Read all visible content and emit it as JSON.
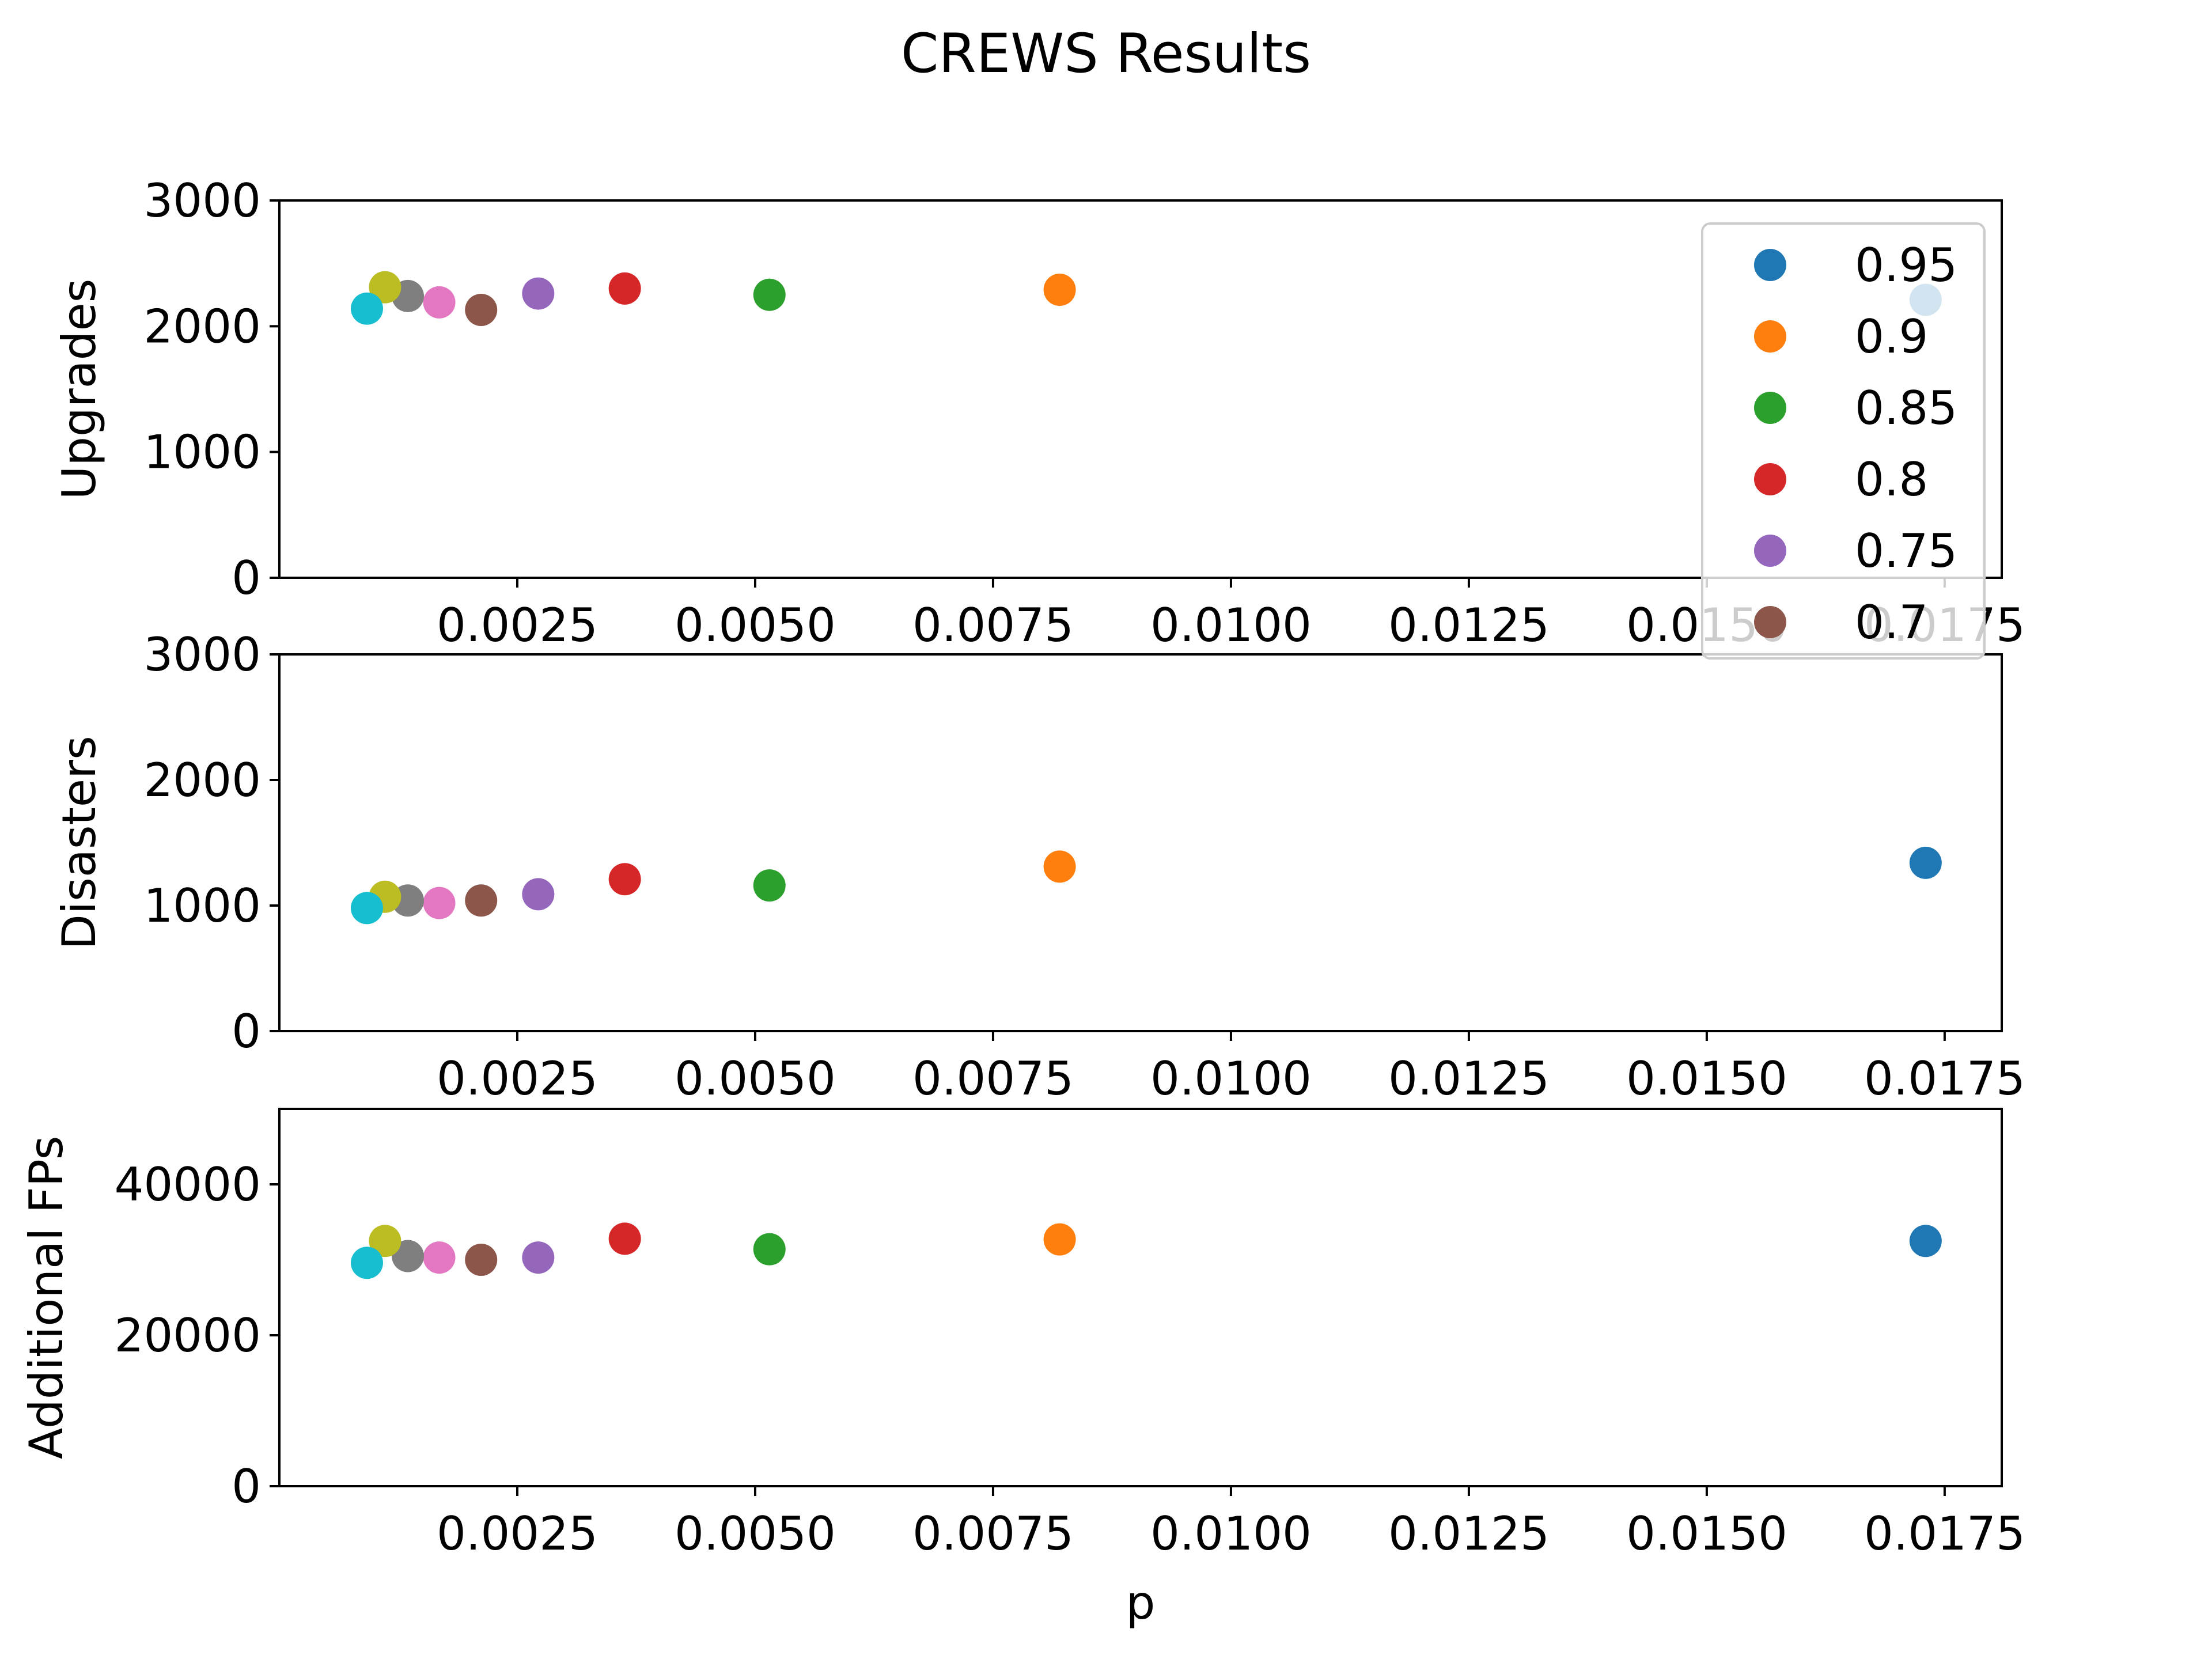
{
  "chart_data": {
    "title": "CREWS Results",
    "type": "scatter",
    "xlabel": "p",
    "xlim": [
      0.0,
      0.0181
    ],
    "xticks": [
      "0.0025",
      "0.0050",
      "0.0075",
      "0.0100",
      "0.0125",
      "0.0150",
      "0.0175"
    ],
    "legend": {
      "placement": "top-right",
      "entries": [
        "0.95",
        "0.9",
        "0.85",
        "0.8",
        "0.75",
        "0.7"
      ]
    },
    "series": [
      {
        "name": "0.95",
        "color": "#1f77b4",
        "x": 0.0173
      },
      {
        "name": "0.9",
        "color": "#ff7f0e",
        "x": 0.0082
      },
      {
        "name": "0.85",
        "color": "#2ca02c",
        "x": 0.00515
      },
      {
        "name": "0.8",
        "color": "#d62728",
        "x": 0.00363
      },
      {
        "name": "0.75",
        "color": "#9467bd",
        "x": 0.00272
      },
      {
        "name": "0.7",
        "color": "#8c564b",
        "x": 0.00212
      },
      {
        "color": "#e377c2",
        "x": 0.00168
      },
      {
        "color": "#7f7f7f",
        "x": 0.00135
      },
      {
        "color": "#bcbd22",
        "x": 0.00111
      },
      {
        "color": "#17becf",
        "x": 0.00092
      }
    ],
    "subplots": [
      {
        "ylabel": "Upgrades",
        "ylim": [
          0,
          3000
        ],
        "yticks": [
          "0",
          "1000",
          "2000",
          "3000"
        ],
        "yvalues": [
          2210,
          2290,
          2250,
          2300,
          2260,
          2130,
          2190,
          2240,
          2310,
          2140
        ]
      },
      {
        "ylabel": "Disasters",
        "ylim": [
          0,
          3000
        ],
        "yticks": [
          "0",
          "1000",
          "2000",
          "3000"
        ],
        "yvalues": [
          1340,
          1310,
          1160,
          1210,
          1090,
          1040,
          1020,
          1040,
          1070,
          980
        ]
      },
      {
        "ylabel": "Additional FPs",
        "ylim": [
          0,
          50000
        ],
        "yticks": [
          "0",
          "20000",
          "40000"
        ],
        "yvalues": [
          32500,
          32700,
          31400,
          32800,
          30300,
          30000,
          30300,
          30500,
          32500,
          29600
        ]
      }
    ]
  }
}
